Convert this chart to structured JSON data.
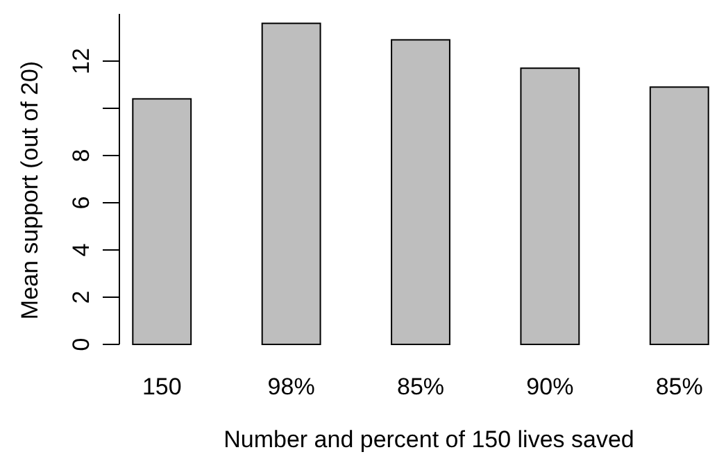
{
  "chart_data": {
    "type": "bar",
    "xlabel": "Number and percent of 150 lives saved",
    "ylabel": "Mean support (out of 20)",
    "categories": [
      "150",
      "98%",
      "85%",
      "90%",
      "85%"
    ],
    "values": [
      10.4,
      13.6,
      12.9,
      11.7,
      10.9
    ],
    "color": "#bebebe",
    "ylim": [
      0,
      14
    ],
    "yticks": [
      0,
      2,
      4,
      6,
      8,
      {
        "value": 10,
        "label": null
      },
      12
    ],
    "grid": false
  }
}
